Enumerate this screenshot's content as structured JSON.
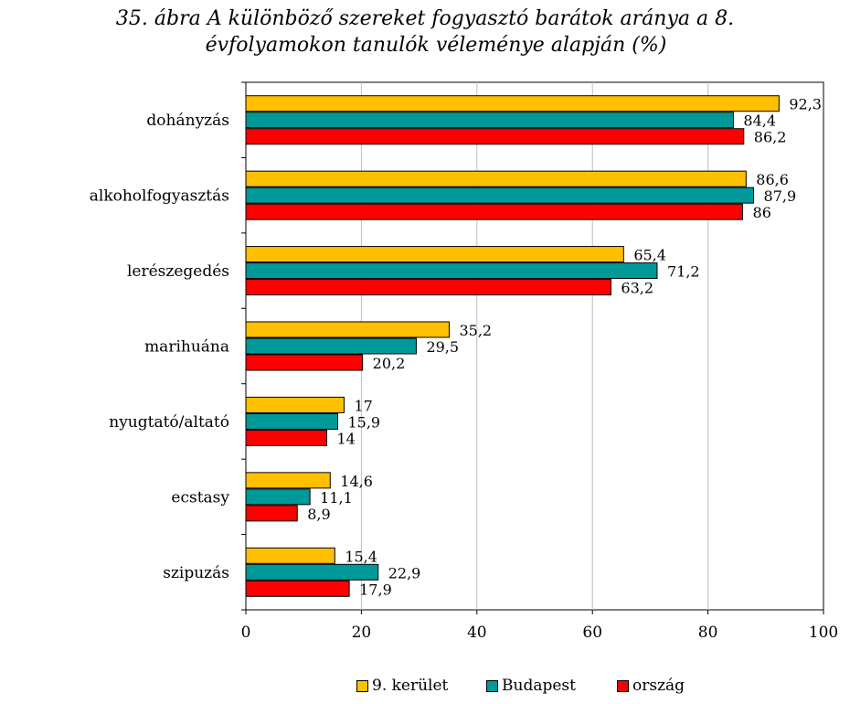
{
  "title": {
    "line1": "35. ábra A különböző szereket fogyasztó barátok aránya a 8.",
    "line2": "évfolyamokon tanulók véleménye alapján (%)"
  },
  "chart_data": {
    "type": "bar",
    "orientation": "horizontal",
    "title": "35. ábra A különböző szereket fogyasztó barátok aránya a 8. évfolyamokon tanulók véleménye alapján (%)",
    "categories": [
      "dohányzás",
      "alkoholfogyasztás",
      "lerészegedés",
      "marihuána",
      "nyugtató/altató",
      "ecstasy",
      "szipuzás"
    ],
    "series": [
      {
        "name": "9. kerület",
        "color": "#FFC000",
        "values": [
          92.3,
          86.6,
          65.4,
          35.2,
          17,
          14.6,
          15.4
        ],
        "labels": [
          "92,3",
          "86,6",
          "65,4",
          "35,2",
          "17",
          "14,6",
          "15,4"
        ]
      },
      {
        "name": "Budapest",
        "color": "#009999",
        "values": [
          84.4,
          87.9,
          71.2,
          29.5,
          15.9,
          11.1,
          22.9
        ],
        "labels": [
          "84,4",
          "87,9",
          "71,2",
          "29,5",
          "15,9",
          "11,1",
          "22,9"
        ]
      },
      {
        "name": "ország",
        "color": "#FF0000",
        "values": [
          86.2,
          86,
          63.2,
          20.2,
          14,
          8.9,
          17.9
        ],
        "labels": [
          "86,2",
          "86",
          "63,2",
          "20,2",
          "14",
          "8,9",
          "17,9"
        ]
      }
    ],
    "xlim": [
      0,
      100
    ],
    "xticks": [
      0,
      20,
      40,
      60,
      80,
      100
    ],
    "xtick_labels": [
      "0",
      "20",
      "40",
      "60",
      "80",
      "100"
    ],
    "grid": true,
    "legend_position": "bottom"
  }
}
